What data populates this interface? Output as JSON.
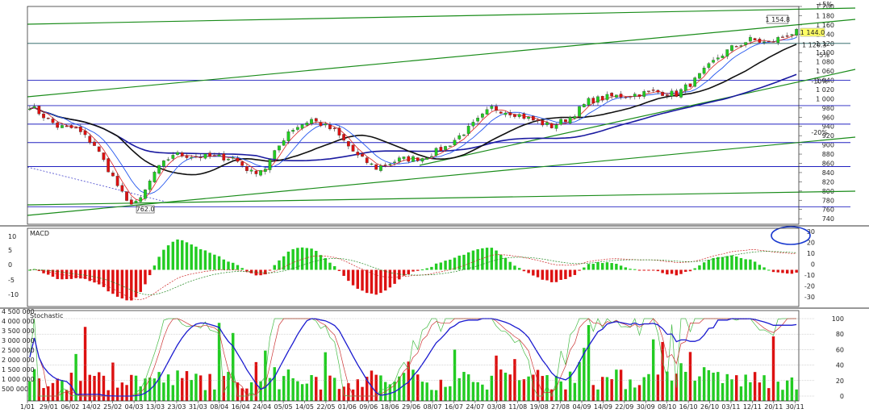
{
  "chart_data": [
    {
      "type": "candlestick",
      "panel": "price",
      "title": "",
      "ylim": [
        728,
        1200
      ],
      "y_ticks": [
        740,
        760,
        780,
        800,
        820,
        840,
        860,
        880,
        900,
        920,
        940,
        960,
        980,
        1000,
        1020,
        1040,
        1060,
        1080,
        1100,
        1120,
        1140,
        1160,
        1180,
        1200
      ],
      "x_ticks": [
        "1/01",
        "29/01",
        "06/02",
        "14/02",
        "25/02",
        "04/03",
        "13/03",
        "23/03",
        "31/03",
        "08/04",
        "16/04",
        "24/04",
        "05/05",
        "14/05",
        "22/05",
        "01/06",
        "09/06",
        "18/06",
        "29/06",
        "08/07",
        "16/07",
        "24/07",
        "03/08",
        "11/08",
        "19/08",
        "27/08",
        "04/09",
        "14/09",
        "22/09",
        "30/09",
        "08/10",
        "16/10",
        "26/10",
        "03/11",
        "12/11",
        "20/11",
        "30/11"
      ],
      "anchors": [
        [
          0,
          985
        ],
        [
          6,
          940
        ],
        [
          10,
          935
        ],
        [
          14,
          900
        ],
        [
          18,
          830
        ],
        [
          21,
          775
        ],
        [
          24,
          780
        ],
        [
          27,
          840
        ],
        [
          31,
          880
        ],
        [
          36,
          875
        ],
        [
          44,
          872
        ],
        [
          48,
          840
        ],
        [
          51,
          850
        ],
        [
          56,
          930
        ],
        [
          61,
          955
        ],
        [
          66,
          930
        ],
        [
          71,
          875
        ],
        [
          75,
          850
        ],
        [
          80,
          868
        ],
        [
          85,
          872
        ],
        [
          90,
          895
        ],
        [
          95,
          935
        ],
        [
          100,
          980
        ],
        [
          105,
          968
        ],
        [
          110,
          950
        ],
        [
          113,
          940
        ],
        [
          117,
          960
        ],
        [
          121,
          995
        ],
        [
          126,
          1005
        ],
        [
          130,
          1008
        ],
        [
          135,
          1015
        ],
        [
          140,
          1010
        ],
        [
          144,
          1040
        ],
        [
          149,
          1090
        ],
        [
          152,
          1110
        ],
        [
          156,
          1128
        ],
        [
          160,
          1120
        ],
        [
          164,
          1140
        ],
        [
          166,
          1144
        ]
      ],
      "last_price": "1 144.0",
      "high_label": "1 154.8",
      "low_label": "762.0",
      "level_label": "1 120.3",
      "pct_labels": [
        "+5%",
        "-5%",
        "-10%",
        "-20%"
      ],
      "horizontal_levels": [
        1120,
        1040,
        985,
        945,
        905,
        853,
        766
      ],
      "colors": {
        "up": "#22cc22",
        "down": "#dd1111",
        "grid_level": "#2020c0",
        "trend": "#1a8c1a",
        "ma_long": "#1a1aa0",
        "ma_mid": "#111111",
        "ma_fast": "#dd2222",
        "ma_fast2": "#2255ee"
      }
    },
    {
      "type": "bar",
      "panel": "macd",
      "title": "MACD",
      "left_ticks": [
        "10",
        "5",
        "0",
        "-5",
        "-10"
      ],
      "right_ticks": [
        "30",
        "20",
        "10",
        "0",
        "-10",
        "-20",
        "-30"
      ],
      "ylim": [
        -35,
        35
      ]
    },
    {
      "type": "bar",
      "panel": "stochastic-volume",
      "title": "Stochastic",
      "volume_ticks": [
        "500 000",
        "1 000 000",
        "1 500 000",
        "2 000 000",
        "2 500 000",
        "3 000 000",
        "3 500 000",
        "4 000 000",
        "4 500 000"
      ],
      "stoch_ticks": [
        "0",
        "20",
        "40",
        "60",
        "80",
        "100"
      ]
    }
  ]
}
